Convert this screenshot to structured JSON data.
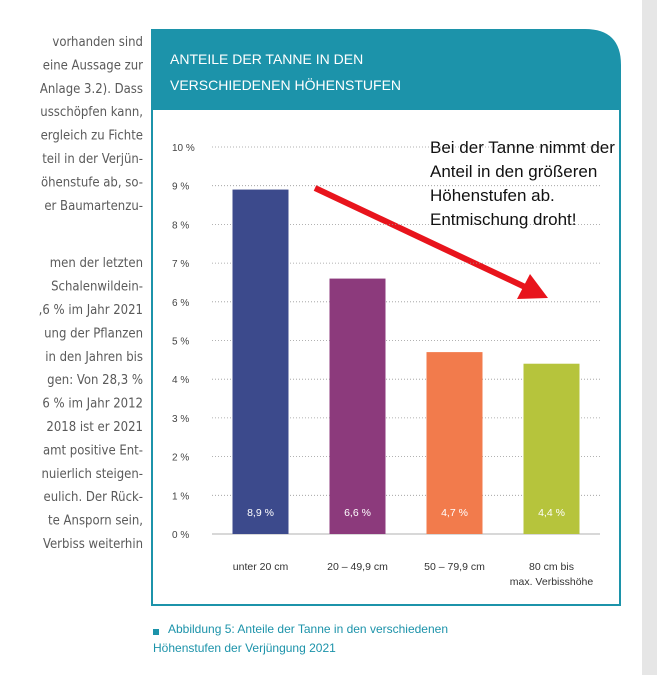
{
  "text_lines": [
    "vorhanden sind",
    "eine Aussage zur",
    "Anlage 3.2). Dass",
    "usschöpfen kann,",
    "ergleich zu Fichte",
    "teil in der Verjün-",
    "öhenstufe ab, so-",
    "er Baumartenzu-",
    "men der letzten",
    "Schalenwildein-",
    ",6 % im Jahr 2021",
    "ung der Pflanzen",
    "in den Jahren bis",
    "gen: Von 28,3 %",
    "6 % im Jahr 2012",
    "2018 ist er 2021",
    "amt positive Ent-",
    "nuierlich steigen-",
    "eulich. Der Rück-",
    "te Ansporn sein,",
    "Verbiss weiterhin"
  ],
  "chart_data": {
    "type": "bar",
    "title": [
      "ANTEILE DER TANNE IN DEN",
      "VERSCHIEDENEN HÖHENSTUFEN"
    ],
    "categories": [
      [
        "unter 20 cm"
      ],
      [
        "20 – 49,9 cm"
      ],
      [
        "50 – 79,9 cm"
      ],
      [
        "80 cm bis",
        "max. Verbisshöhe"
      ]
    ],
    "values": [
      8.9,
      6.6,
      4.7,
      4.4
    ],
    "value_labels": [
      "8,9 %",
      "6,6 %",
      "4,7 %",
      "4,4 %"
    ],
    "colors": [
      "#3c4a8c",
      "#8c3a7c",
      "#f27b4c",
      "#b6c43c"
    ],
    "ylim": [
      0,
      10
    ],
    "yticks": [
      {
        "value": 0,
        "label": "0 %"
      },
      {
        "value": 1,
        "label": "1 %"
      },
      {
        "value": 2,
        "label": "2 %"
      },
      {
        "value": 3,
        "label": "3 %"
      },
      {
        "value": 4,
        "label": "4 %"
      },
      {
        "value": 5,
        "label": "5 %"
      },
      {
        "value": 6,
        "label": "6 %"
      },
      {
        "value": 7,
        "label": "7 %"
      },
      {
        "value": 8,
        "label": "8 %"
      },
      {
        "value": 9,
        "label": "9 %"
      },
      {
        "value": 10,
        "label": "10 %"
      }
    ],
    "grid": true,
    "annotation": [
      "Bei der Tanne nimmt der",
      "Anteil in den größeren",
      "Höhenstufen ab.",
      "Entmischung droht!"
    ]
  },
  "caption": [
    "Abbildung 5: Anteile der Tanne in den verschiedenen",
    "Höhenstufen der Verjüngung 2021"
  ]
}
